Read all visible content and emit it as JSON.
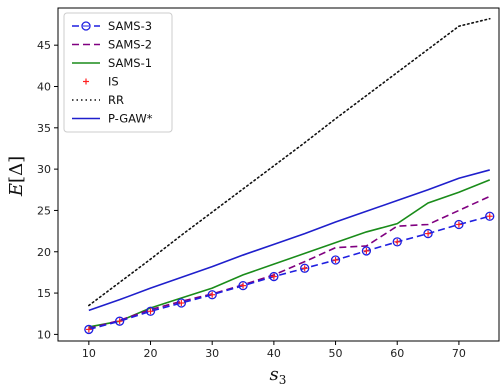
{
  "chart_data": {
    "type": "line",
    "title": "",
    "xlabel": "s_3",
    "ylabel": "E[Δ]",
    "xlim": [
      5,
      76.5
    ],
    "ylim": [
      9.2,
      49.5
    ],
    "xticks": [
      10,
      20,
      30,
      40,
      50,
      60,
      70
    ],
    "yticks": [
      10,
      15,
      20,
      25,
      30,
      35,
      40,
      45
    ],
    "grid": false,
    "legend_position": "top-left",
    "x": [
      10,
      15,
      20,
      25,
      30,
      35,
      40,
      45,
      50,
      55,
      60,
      65,
      70,
      75
    ],
    "series": [
      {
        "name": "SAMS-3",
        "color": "#1f1fe0",
        "style": "dashed",
        "marker": "circle-plus",
        "values": [
          10.6,
          11.6,
          12.8,
          13.8,
          14.8,
          15.9,
          17.0,
          18.0,
          19.0,
          20.1,
          21.2,
          22.2,
          23.3,
          24.3
        ]
      },
      {
        "name": "SAMS-2",
        "color": "#800080",
        "style": "dashed",
        "marker": "none",
        "values": [
          10.7,
          11.7,
          13.0,
          14.0,
          14.9,
          16.0,
          17.2,
          18.8,
          20.5,
          20.7,
          23.1,
          23.3,
          25.0,
          26.7
        ]
      },
      {
        "name": "SAMS-1",
        "color": "#1a8c1a",
        "style": "solid",
        "marker": "none",
        "values": [
          10.9,
          11.6,
          13.2,
          14.4,
          15.6,
          17.2,
          18.5,
          19.8,
          21.1,
          22.4,
          23.4,
          25.9,
          27.2,
          28.7
        ]
      },
      {
        "name": "IS",
        "color": "#ff2020",
        "style": "none",
        "marker": "plus",
        "values": [
          10.6,
          11.6,
          12.8,
          13.8,
          14.8,
          15.9,
          17.0,
          18.0,
          19.0,
          20.1,
          21.2,
          22.2,
          23.3,
          24.3
        ]
      },
      {
        "name": "RR",
        "color": "#111111",
        "style": "dotted",
        "marker": "none",
        "values": [
          13.5,
          16.3,
          19.1,
          22.0,
          24.8,
          27.6,
          30.4,
          33.2,
          36.1,
          38.9,
          41.7,
          44.5,
          47.3,
          48.2
        ]
      },
      {
        "name": "P-GAW*",
        "color": "#1f1fcc",
        "style": "solid",
        "marker": "none",
        "values": [
          12.9,
          14.2,
          15.6,
          16.9,
          18.2,
          19.6,
          20.9,
          22.2,
          23.6,
          24.9,
          26.2,
          27.5,
          28.9,
          29.9
        ]
      }
    ]
  }
}
